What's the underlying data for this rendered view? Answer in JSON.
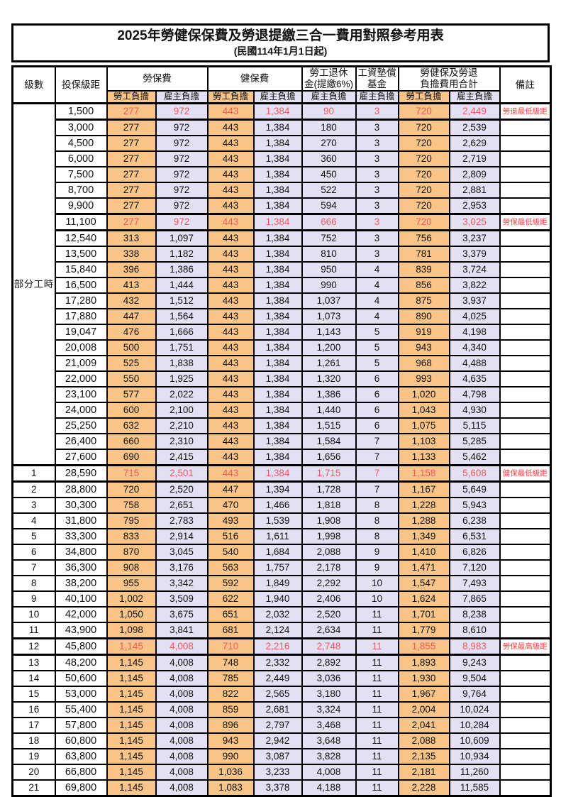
{
  "title": "2025年勞健保保費及勞退提繳三合一費用對照參考用表",
  "subtitle": "(民國114年1月1日起)",
  "colors": {
    "employee_share_bg": "#F9C488",
    "employer_share_bg": "#E4E0F3",
    "highlight_value_text": "#F15A5E",
    "note_text": "#F64040",
    "border": "#000000"
  },
  "header": {
    "grade": "級數",
    "salary": "投保級距",
    "labor": "勞保費",
    "health": "健保費",
    "pension_line1": "勞工退休",
    "pension_line2": "金(提繳6%)",
    "wage_fund_line1": "工資墊償",
    "wage_fund_line2": "基金",
    "total_line1": "勞健保及勞退",
    "total_line2": "負擔費用合計",
    "note": "備註",
    "employee_share": "勞工負擔",
    "employer_share": "雇主負擔"
  },
  "part_time_label": "部分工時",
  "part_time_rowspan": 23,
  "value_column_styles": [
    "emp",
    "er",
    "emp",
    "er",
    "er",
    "er",
    "emp",
    "er"
  ],
  "rows": [
    {
      "grade": "",
      "salary": "1,500",
      "values": [
        "277",
        "972",
        "443",
        "1,384",
        "90",
        "3",
        "720",
        "2,449"
      ],
      "note": "勞退最低級距",
      "highlight": true
    },
    {
      "grade": "",
      "salary": "3,000",
      "values": [
        "277",
        "972",
        "443",
        "1,384",
        "180",
        "3",
        "720",
        "2,539"
      ],
      "note": "",
      "highlight": false
    },
    {
      "grade": "",
      "salary": "4,500",
      "values": [
        "277",
        "972",
        "443",
        "1,384",
        "270",
        "3",
        "720",
        "2,629"
      ],
      "note": "",
      "highlight": false
    },
    {
      "grade": "",
      "salary": "6,000",
      "values": [
        "277",
        "972",
        "443",
        "1,384",
        "360",
        "3",
        "720",
        "2,719"
      ],
      "note": "",
      "highlight": false
    },
    {
      "grade": "",
      "salary": "7,500",
      "values": [
        "277",
        "972",
        "443",
        "1,384",
        "450",
        "3",
        "720",
        "2,809"
      ],
      "note": "",
      "highlight": false
    },
    {
      "grade": "",
      "salary": "8,700",
      "values": [
        "277",
        "972",
        "443",
        "1,384",
        "522",
        "3",
        "720",
        "2,881"
      ],
      "note": "",
      "highlight": false
    },
    {
      "grade": "",
      "salary": "9,900",
      "values": [
        "277",
        "972",
        "443",
        "1,384",
        "594",
        "3",
        "720",
        "2,953"
      ],
      "note": "",
      "highlight": false
    },
    {
      "grade": "",
      "salary": "11,100",
      "values": [
        "277",
        "972",
        "443",
        "1,384",
        "666",
        "3",
        "720",
        "3,025"
      ],
      "note": "勞保最低級距",
      "highlight": true
    },
    {
      "grade": "",
      "salary": "12,540",
      "values": [
        "313",
        "1,097",
        "443",
        "1,384",
        "752",
        "3",
        "756",
        "3,237"
      ],
      "note": "",
      "highlight": false
    },
    {
      "grade": "",
      "salary": "13,500",
      "values": [
        "338",
        "1,182",
        "443",
        "1,384",
        "810",
        "3",
        "781",
        "3,379"
      ],
      "note": "",
      "highlight": false
    },
    {
      "grade": "",
      "salary": "15,840",
      "values": [
        "396",
        "1,386",
        "443",
        "1,384",
        "950",
        "4",
        "839",
        "3,724"
      ],
      "note": "",
      "highlight": false
    },
    {
      "grade": "",
      "salary": "16,500",
      "values": [
        "413",
        "1,444",
        "443",
        "1,384",
        "990",
        "4",
        "856",
        "3,822"
      ],
      "note": "",
      "highlight": false
    },
    {
      "grade": "",
      "salary": "17,280",
      "values": [
        "432",
        "1,512",
        "443",
        "1,384",
        "1,037",
        "4",
        "875",
        "3,937"
      ],
      "note": "",
      "highlight": false
    },
    {
      "grade": "",
      "salary": "17,880",
      "values": [
        "447",
        "1,564",
        "443",
        "1,384",
        "1,073",
        "4",
        "890",
        "4,025"
      ],
      "note": "",
      "highlight": false
    },
    {
      "grade": "",
      "salary": "19,047",
      "values": [
        "476",
        "1,666",
        "443",
        "1,384",
        "1,143",
        "5",
        "919",
        "4,198"
      ],
      "note": "",
      "highlight": false
    },
    {
      "grade": "",
      "salary": "20,008",
      "values": [
        "500",
        "1,751",
        "443",
        "1,384",
        "1,200",
        "5",
        "943",
        "4,340"
      ],
      "note": "",
      "highlight": false
    },
    {
      "grade": "",
      "salary": "21,009",
      "values": [
        "525",
        "1,838",
        "443",
        "1,384",
        "1,261",
        "5",
        "968",
        "4,488"
      ],
      "note": "",
      "highlight": false
    },
    {
      "grade": "",
      "salary": "22,000",
      "values": [
        "550",
        "1,925",
        "443",
        "1,384",
        "1,320",
        "6",
        "993",
        "4,635"
      ],
      "note": "",
      "highlight": false
    },
    {
      "grade": "",
      "salary": "23,100",
      "values": [
        "577",
        "2,022",
        "443",
        "1,384",
        "1,386",
        "6",
        "1,020",
        "4,798"
      ],
      "note": "",
      "highlight": false
    },
    {
      "grade": "",
      "salary": "24,000",
      "values": [
        "600",
        "2,100",
        "443",
        "1,384",
        "1,440",
        "6",
        "1,043",
        "4,930"
      ],
      "note": "",
      "highlight": false
    },
    {
      "grade": "",
      "salary": "25,250",
      "values": [
        "632",
        "2,210",
        "443",
        "1,384",
        "1,515",
        "6",
        "1,075",
        "5,115"
      ],
      "note": "",
      "highlight": false
    },
    {
      "grade": "",
      "salary": "26,400",
      "values": [
        "660",
        "2,310",
        "443",
        "1,384",
        "1,584",
        "7",
        "1,103",
        "5,285"
      ],
      "note": "",
      "highlight": false
    },
    {
      "grade": "",
      "salary": "27,600",
      "values": [
        "690",
        "2,415",
        "443",
        "1,384",
        "1,656",
        "7",
        "1,133",
        "5,462"
      ],
      "note": "",
      "highlight": false
    },
    {
      "grade": "1",
      "salary": "28,590",
      "values": [
        "715",
        "2,501",
        "443",
        "1,384",
        "1,715",
        "7",
        "1,158",
        "5,608"
      ],
      "note": "健保最低級距",
      "highlight": true
    },
    {
      "grade": "2",
      "salary": "28,800",
      "values": [
        "720",
        "2,520",
        "447",
        "1,394",
        "1,728",
        "7",
        "1,167",
        "5,649"
      ],
      "note": "",
      "highlight": false
    },
    {
      "grade": "3",
      "salary": "30,300",
      "values": [
        "758",
        "2,651",
        "470",
        "1,466",
        "1,818",
        "8",
        "1,228",
        "5,943"
      ],
      "note": "",
      "highlight": false
    },
    {
      "grade": "4",
      "salary": "31,800",
      "values": [
        "795",
        "2,783",
        "493",
        "1,539",
        "1,908",
        "8",
        "1,288",
        "6,238"
      ],
      "note": "",
      "highlight": false
    },
    {
      "grade": "5",
      "salary": "33,300",
      "values": [
        "833",
        "2,914",
        "516",
        "1,611",
        "1,998",
        "8",
        "1,349",
        "6,531"
      ],
      "note": "",
      "highlight": false
    },
    {
      "grade": "6",
      "salary": "34,800",
      "values": [
        "870",
        "3,045",
        "540",
        "1,684",
        "2,088",
        "9",
        "1,410",
        "6,826"
      ],
      "note": "",
      "highlight": false
    },
    {
      "grade": "7",
      "salary": "36,300",
      "values": [
        "908",
        "3,176",
        "563",
        "1,757",
        "2,178",
        "9",
        "1,471",
        "7,120"
      ],
      "note": "",
      "highlight": false
    },
    {
      "grade": "8",
      "salary": "38,200",
      "values": [
        "955",
        "3,342",
        "592",
        "1,849",
        "2,292",
        "10",
        "1,547",
        "7,493"
      ],
      "note": "",
      "highlight": false
    },
    {
      "grade": "9",
      "salary": "40,100",
      "values": [
        "1,002",
        "3,509",
        "622",
        "1,940",
        "2,406",
        "10",
        "1,624",
        "7,865"
      ],
      "note": "",
      "highlight": false
    },
    {
      "grade": "10",
      "salary": "42,000",
      "values": [
        "1,050",
        "3,675",
        "651",
        "2,032",
        "2,520",
        "11",
        "1,701",
        "8,238"
      ],
      "note": "",
      "highlight": false
    },
    {
      "grade": "11",
      "salary": "43,900",
      "values": [
        "1,098",
        "3,841",
        "681",
        "2,124",
        "2,634",
        "11",
        "1,779",
        "8,610"
      ],
      "note": "",
      "highlight": false
    },
    {
      "grade": "12",
      "salary": "45,800",
      "values": [
        "1,145",
        "4,008",
        "710",
        "2,216",
        "2,748",
        "11",
        "1,855",
        "8,983"
      ],
      "note": "勞保最高級距",
      "highlight": true
    },
    {
      "grade": "13",
      "salary": "48,200",
      "values": [
        "1,145",
        "4,008",
        "748",
        "2,332",
        "2,892",
        "11",
        "1,893",
        "9,243"
      ],
      "note": "",
      "highlight": false
    },
    {
      "grade": "14",
      "salary": "50,600",
      "values": [
        "1,145",
        "4,008",
        "785",
        "2,449",
        "3,036",
        "11",
        "1,930",
        "9,504"
      ],
      "note": "",
      "highlight": false
    },
    {
      "grade": "15",
      "salary": "53,000",
      "values": [
        "1,145",
        "4,008",
        "822",
        "2,565",
        "3,180",
        "11",
        "1,967",
        "9,764"
      ],
      "note": "",
      "highlight": false
    },
    {
      "grade": "16",
      "salary": "55,400",
      "values": [
        "1,145",
        "4,008",
        "859",
        "2,681",
        "3,324",
        "11",
        "2,004",
        "10,024"
      ],
      "note": "",
      "highlight": false
    },
    {
      "grade": "17",
      "salary": "57,800",
      "values": [
        "1,145",
        "4,008",
        "896",
        "2,797",
        "3,468",
        "11",
        "2,041",
        "10,284"
      ],
      "note": "",
      "highlight": false
    },
    {
      "grade": "18",
      "salary": "60,800",
      "values": [
        "1,145",
        "4,008",
        "943",
        "2,942",
        "3,648",
        "11",
        "2,088",
        "10,609"
      ],
      "note": "",
      "highlight": false
    },
    {
      "grade": "19",
      "salary": "63,800",
      "values": [
        "1,145",
        "4,008",
        "990",
        "3,087",
        "3,828",
        "11",
        "2,135",
        "10,934"
      ],
      "note": "",
      "highlight": false
    },
    {
      "grade": "20",
      "salary": "66,800",
      "values": [
        "1,145",
        "4,008",
        "1,036",
        "3,233",
        "4,008",
        "11",
        "2,181",
        "11,260"
      ],
      "note": "",
      "highlight": false
    },
    {
      "grade": "21",
      "salary": "69,800",
      "values": [
        "1,145",
        "4,008",
        "1,083",
        "3,378",
        "4,188",
        "11",
        "2,228",
        "11,585"
      ],
      "note": "",
      "highlight": false
    }
  ]
}
